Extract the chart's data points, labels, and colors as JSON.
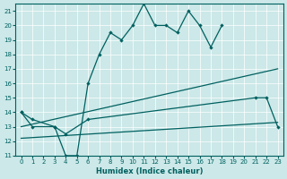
{
  "main_x": [
    0,
    1,
    3,
    4,
    5,
    6,
    7,
    8,
    9,
    10,
    11,
    12,
    13,
    14,
    15,
    16,
    17,
    18
  ],
  "main_y": [
    14,
    13.5,
    13,
    11,
    11,
    16,
    18,
    19.5,
    19,
    20,
    21.5,
    20,
    20,
    19.5,
    21,
    20,
    18.5,
    20
  ],
  "line2_x": [
    0,
    1,
    3,
    4,
    6,
    21,
    22,
    23
  ],
  "line2_y": [
    14,
    13,
    13,
    12.5,
    13.5,
    15,
    15,
    13
  ],
  "trend1_x": [
    0,
    23
  ],
  "trend1_y": [
    13.0,
    17.0
  ],
  "trend2_x": [
    0,
    23
  ],
  "trend2_y": [
    12.2,
    13.3
  ],
  "bg_color": "#cce8e8",
  "line_color": "#006060",
  "xlabel": "Humidex (Indice chaleur)",
  "xlim": [
    -0.5,
    23.5
  ],
  "ylim": [
    11,
    21.5
  ],
  "yticks": [
    11,
    12,
    13,
    14,
    15,
    16,
    17,
    18,
    19,
    20,
    21
  ],
  "xticks": [
    0,
    1,
    2,
    3,
    4,
    5,
    6,
    7,
    8,
    9,
    10,
    11,
    12,
    13,
    14,
    15,
    16,
    17,
    18,
    19,
    20,
    21,
    22,
    23
  ]
}
